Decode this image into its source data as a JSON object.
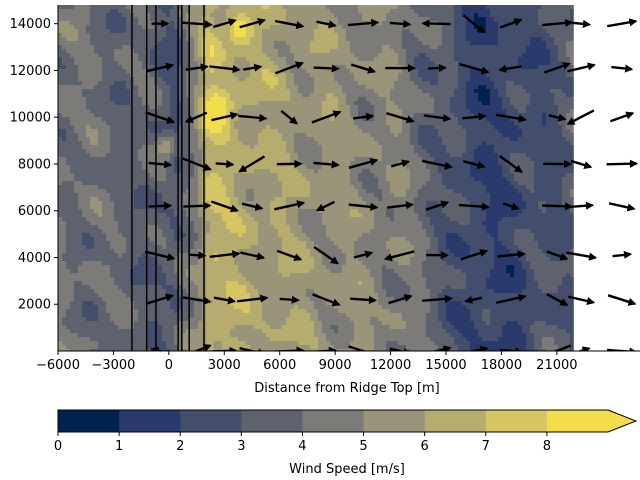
{
  "chart_data": [
    {
      "type": "filled-contour-with-quiver",
      "title": "",
      "xlabel": "Distance from Ridge Top [m]",
      "ylabel": "",
      "xlim": [
        -6000,
        25500
      ],
      "ylim": [
        0,
        14800
      ],
      "x_ticks": [
        -6000,
        -3000,
        0,
        3000,
        6000,
        9000,
        12000,
        15000,
        18000,
        21000
      ],
      "x_tick_labels": [
        "−6000",
        "−3000",
        "0",
        "3000",
        "6000",
        "9000",
        "12000",
        "15000",
        "18000",
        "21000"
      ],
      "y_ticks": [
        2000,
        4000,
        6000,
        8000,
        10000,
        12000,
        14000
      ],
      "y_tick_labels": [
        "2000",
        "4000",
        "6000",
        "8000",
        "10000",
        "12000",
        "14000"
      ],
      "contour_data_extent_x": [
        -6000,
        21900
      ],
      "vertical_lines_x": [
        -2000,
        -1200,
        -700,
        500,
        700,
        1100,
        1900
      ],
      "wind_speed_bands": [
        {
          "region": "x -6000 to -3500",
          "speed": 4.2
        },
        {
          "region": "x -3500 to 0",
          "speed": 3.6
        },
        {
          "region": "x 0 to 1500",
          "speed": 2.8
        },
        {
          "region": "x 1500 to 3500",
          "speed": 6.8
        },
        {
          "region": "x 3500 to 6000",
          "speed": 6.2
        },
        {
          "region": "x 6000 to 9000",
          "speed": 5.6
        },
        {
          "region": "x 9000 to 12500",
          "speed": 5.2
        },
        {
          "region": "x 12500 to 15000",
          "speed": 4.4
        },
        {
          "region": "x 15000 to 19000",
          "speed": 2.2
        },
        {
          "region": "x 19000 to 21900",
          "speed": 3.0
        }
      ],
      "quiver_rows_y": [
        0,
        2200,
        4100,
        6200,
        8000,
        10000,
        12100,
        14000
      ],
      "quiver_columns_x": [
        -500,
        1500,
        3000,
        4500,
        6500,
        8500,
        10500,
        12500,
        14500,
        16500,
        18500,
        21000,
        22300,
        24500,
        26400
      ]
    },
    {
      "type": "colorbar",
      "label": "Wind Speed [m/s]",
      "ticks": [
        0,
        1,
        2,
        3,
        4,
        5,
        6,
        7,
        8
      ],
      "tick_labels": [
        "0",
        "1",
        "2",
        "3",
        "4",
        "5",
        "6",
        "7",
        "8"
      ],
      "levels": [
        0,
        1,
        2,
        3,
        4,
        5,
        6,
        7,
        8,
        9
      ],
      "colors": [
        "#00224e",
        "#2a3a6c",
        "#434e6c",
        "#5e626e",
        "#7c7b78",
        "#9a9478",
        "#b6ac6e",
        "#d5c563",
        "#f4dd4d"
      ],
      "extend": "max"
    }
  ]
}
